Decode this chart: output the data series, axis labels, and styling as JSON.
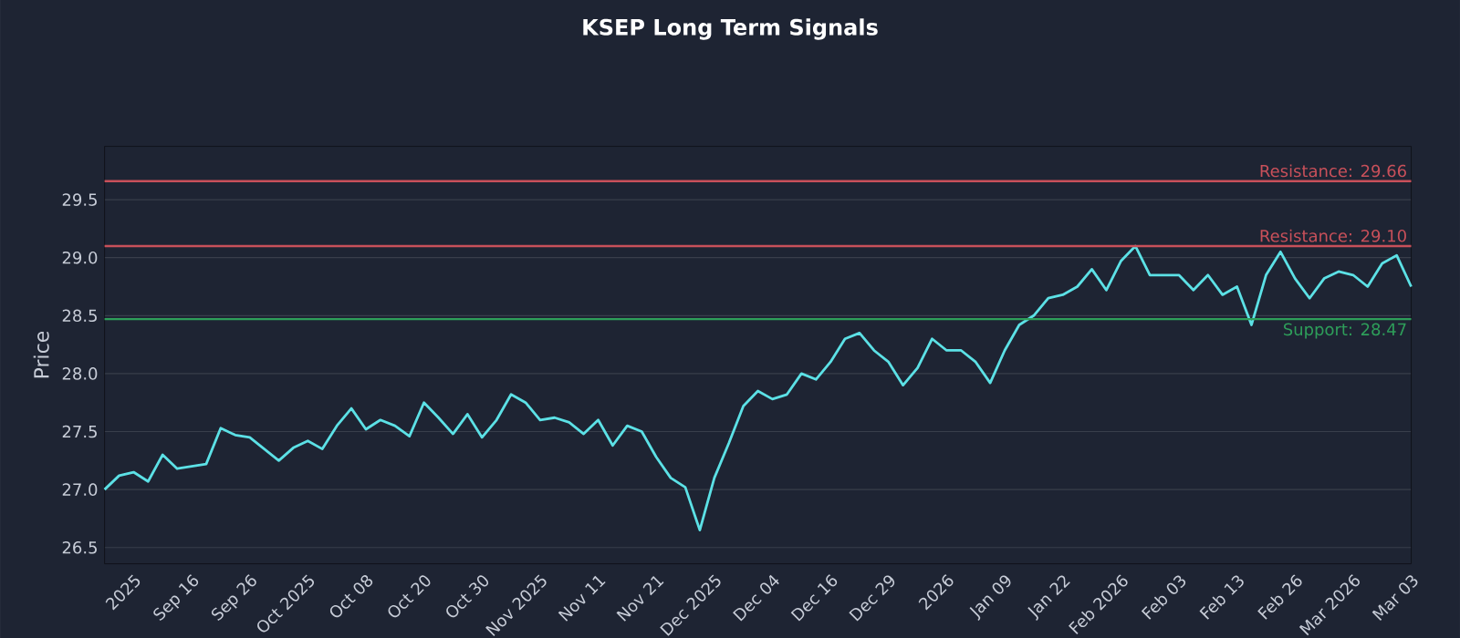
{
  "chart_data": {
    "type": "line",
    "title": "KSEP Long Term Signals",
    "ylabel": "Price",
    "categories": [
      null,
      null,
      "2025",
      null,
      null,
      null,
      "Sep 16",
      null,
      null,
      null,
      "Sep 26",
      null,
      null,
      null,
      "Oct 2025",
      null,
      null,
      null,
      "Oct 08",
      null,
      null,
      null,
      "Oct 20",
      null,
      null,
      null,
      "Oct 30",
      null,
      null,
      null,
      "Nov 2025",
      null,
      null,
      null,
      "Nov 11",
      null,
      null,
      null,
      "Nov 21",
      null,
      null,
      null,
      "Dec 2025",
      null,
      null,
      null,
      "Dec 04",
      null,
      null,
      null,
      "Dec 16",
      null,
      null,
      null,
      "Dec 29",
      null,
      null,
      null,
      "2026",
      null,
      null,
      null,
      "Jan 09",
      null,
      null,
      null,
      "Jan 22",
      null,
      null,
      null,
      "Feb 2026",
      null,
      null,
      null,
      "Feb 03",
      null,
      null,
      null,
      "Feb 13",
      null,
      null,
      null,
      "Feb 26",
      null,
      null,
      null,
      "Mar 2026",
      null,
      null,
      null,
      "Mar 03"
    ],
    "series": [
      {
        "color": "#5ce1e6",
        "values": [
          27.0,
          27.12,
          27.15,
          27.07,
          27.3,
          27.18,
          27.2,
          27.22,
          27.53,
          27.47,
          27.45,
          27.35,
          27.25,
          27.36,
          27.42,
          27.35,
          27.55,
          27.7,
          27.52,
          27.6,
          27.55,
          27.46,
          27.75,
          27.62,
          27.48,
          27.65,
          27.45,
          27.6,
          27.82,
          27.75,
          27.6,
          27.62,
          27.58,
          27.48,
          27.6,
          27.38,
          27.55,
          27.5,
          27.28,
          27.1,
          27.02,
          26.65,
          27.1,
          27.4,
          27.72,
          27.85,
          27.78,
          27.82,
          28.0,
          27.95,
          28.1,
          28.3,
          28.35,
          28.2,
          28.1,
          27.9,
          28.05,
          28.3,
          28.2,
          28.2,
          28.1,
          27.92,
          28.2,
          28.42,
          28.5,
          28.65,
          28.68,
          28.75,
          28.9,
          28.72,
          28.97,
          29.1,
          28.85,
          28.85,
          28.85,
          28.72,
          28.85,
          28.68,
          28.75,
          28.42,
          28.85,
          29.05,
          28.82,
          28.65,
          28.82,
          28.88,
          28.85,
          28.75,
          28.95,
          29.02,
          28.75
        ]
      }
    ],
    "ylim": [
      26.36,
      29.96
    ],
    "yticks": [
      26.5,
      {
        "value": 27,
        "label": "27.0"
      },
      27.5,
      {
        "value": 28,
        "label": "28.0"
      },
      28.5,
      {
        "value": 29,
        "label": "29.0"
      },
      29.5
    ],
    "ref_lines": [
      {
        "axis": "y",
        "value": 29.66,
        "label": "Resistance: 29.66",
        "color": "#c8505a"
      },
      {
        "axis": "y",
        "value": 29.1,
        "label": "Resistance: 29.10",
        "color": "#c8505a"
      },
      {
        "axis": "y",
        "value": 28.47,
        "label": "Support: 28.47",
        "color": "#2e9e5a"
      }
    ],
    "grid": "y",
    "marker": "none",
    "line_style": "solid"
  }
}
